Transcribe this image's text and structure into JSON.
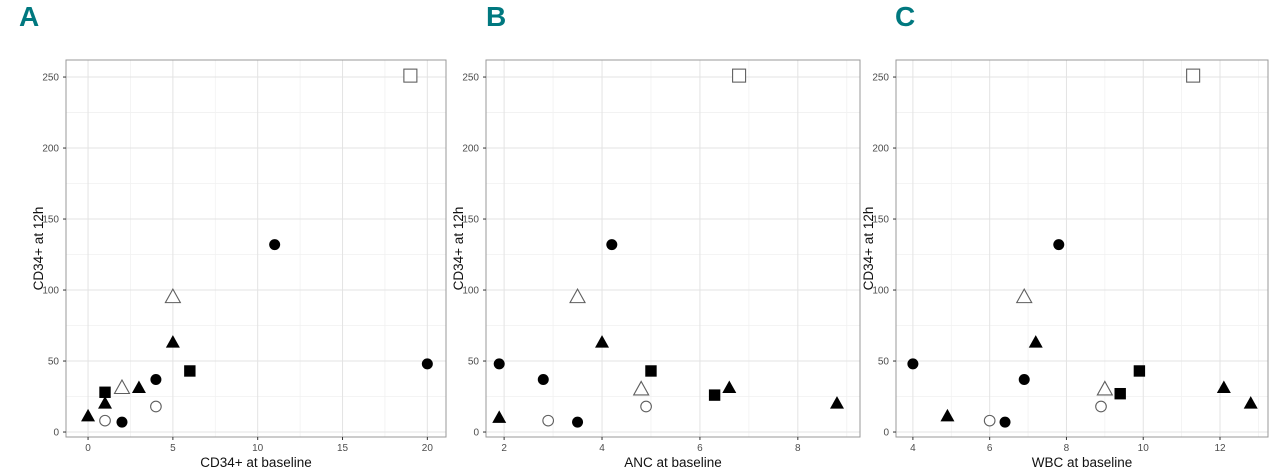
{
  "figure": {
    "label_color": "#00787f",
    "panels": [
      {
        "label": "A"
      },
      {
        "label": "B"
      },
      {
        "label": "C"
      }
    ]
  },
  "style": {
    "background": "#ffffff",
    "marker_fill": "#000000",
    "open_marker_fill": "#ffffff",
    "open_marker_stroke": "#5f5f5f",
    "grid_major": "#e3e3e3",
    "grid_minor": "#f1f1f1",
    "panel_border": "#999999",
    "tick_color": "#333333",
    "tick_label_color": "#4d4d4d",
    "axis_title_color": "#111111"
  },
  "chart_data": [
    {
      "type": "scatter",
      "panel_label": "A",
      "title": "",
      "xlabel": "CD34+ at baseline",
      "ylabel": "CD34+ at 12h",
      "xlim": [
        -1.3,
        21.1
      ],
      "ylim": [
        -3.5,
        262
      ],
      "xticks": [
        0,
        5,
        10,
        15,
        20
      ],
      "xminor": [
        2.5,
        7.5,
        12.5,
        17.5
      ],
      "yticks": [
        0,
        50,
        100,
        150,
        200,
        250
      ],
      "yminor": [
        25,
        75,
        125,
        175,
        225
      ],
      "grid": "on",
      "legend": "none",
      "series": [
        {
          "name": "filled-circle",
          "marker": "circle",
          "variant": "filled",
          "points": [
            [
              2,
              7
            ],
            [
              4,
              37
            ],
            [
              11,
              132
            ],
            [
              20,
              48
            ]
          ]
        },
        {
          "name": "open-circle",
          "marker": "circle",
          "variant": "open",
          "points": [
            [
              1,
              8
            ],
            [
              4,
              18
            ]
          ]
        },
        {
          "name": "filled-triangle",
          "marker": "triangle",
          "variant": "filled",
          "points": [
            [
              0,
              11
            ],
            [
              1,
              20
            ],
            [
              3,
              31
            ],
            [
              5,
              63
            ]
          ]
        },
        {
          "name": "open-triangle",
          "marker": "triangle",
          "variant": "open",
          "points": [
            [
              2,
              31
            ],
            [
              5,
              95
            ]
          ]
        },
        {
          "name": "filled-square",
          "marker": "square",
          "variant": "filled",
          "points": [
            [
              1,
              28
            ],
            [
              6,
              43
            ]
          ]
        },
        {
          "name": "open-square",
          "marker": "square",
          "variant": "open",
          "points": [
            [
              19,
              251
            ]
          ]
        }
      ]
    },
    {
      "type": "scatter",
      "panel_label": "B",
      "title": "",
      "xlabel": "ANC at baseline",
      "ylabel": "CD34+ at 12h",
      "xlim": [
        1.63,
        9.27
      ],
      "ylim": [
        -3.5,
        262
      ],
      "xticks": [
        2,
        4,
        6,
        8
      ],
      "xminor": [
        3,
        5,
        7,
        9
      ],
      "yticks": [
        0,
        50,
        100,
        150,
        200,
        250
      ],
      "yminor": [
        25,
        75,
        125,
        175,
        225
      ],
      "grid": "on",
      "legend": "none",
      "series": [
        {
          "name": "filled-circle",
          "marker": "circle",
          "variant": "filled",
          "points": [
            [
              3.5,
              7
            ],
            [
              2.8,
              37
            ],
            [
              4.2,
              132
            ],
            [
              1.9,
              48
            ]
          ]
        },
        {
          "name": "open-circle",
          "marker": "circle",
          "variant": "open",
          "points": [
            [
              2.9,
              8
            ],
            [
              4.9,
              18
            ]
          ]
        },
        {
          "name": "filled-triangle",
          "marker": "triangle",
          "variant": "filled",
          "points": [
            [
              1.9,
              10
            ],
            [
              8.8,
              20
            ],
            [
              6.6,
              31
            ],
            [
              4.0,
              63
            ]
          ]
        },
        {
          "name": "open-triangle",
          "marker": "triangle",
          "variant": "open",
          "points": [
            [
              4.8,
              30
            ],
            [
              3.5,
              95
            ]
          ]
        },
        {
          "name": "filled-square",
          "marker": "square",
          "variant": "filled",
          "points": [
            [
              5.0,
              43
            ],
            [
              6.3,
              26
            ]
          ]
        },
        {
          "name": "open-square",
          "marker": "square",
          "variant": "open",
          "points": [
            [
              6.8,
              251
            ]
          ]
        }
      ]
    },
    {
      "type": "scatter",
      "panel_label": "C",
      "title": "",
      "xlabel": "WBC at baseline",
      "ylabel": "CD34+ at 12h",
      "xlim": [
        3.56,
        13.25
      ],
      "ylim": [
        -3.5,
        262
      ],
      "xticks": [
        4,
        6,
        8,
        10,
        12
      ],
      "xminor": [
        5,
        7,
        9,
        11,
        13
      ],
      "yticks": [
        0,
        50,
        100,
        150,
        200,
        250
      ],
      "yminor": [
        25,
        75,
        125,
        175,
        225
      ],
      "grid": "on",
      "legend": "none",
      "series": [
        {
          "name": "filled-circle",
          "marker": "circle",
          "variant": "filled",
          "points": [
            [
              6.4,
              7
            ],
            [
              6.9,
              37
            ],
            [
              7.8,
              132
            ],
            [
              4.0,
              48
            ]
          ]
        },
        {
          "name": "open-circle",
          "marker": "circle",
          "variant": "open",
          "points": [
            [
              6.0,
              8
            ],
            [
              8.9,
              18
            ]
          ]
        },
        {
          "name": "filled-triangle",
          "marker": "triangle",
          "variant": "filled",
          "points": [
            [
              4.9,
              11
            ],
            [
              12.8,
              20
            ],
            [
              12.1,
              31
            ],
            [
              7.2,
              63
            ]
          ]
        },
        {
          "name": "open-triangle",
          "marker": "triangle",
          "variant": "open",
          "points": [
            [
              9.0,
              30
            ],
            [
              6.9,
              95
            ]
          ]
        },
        {
          "name": "filled-square",
          "marker": "square",
          "variant": "filled",
          "points": [
            [
              9.9,
              43
            ],
            [
              9.4,
              27
            ]
          ]
        },
        {
          "name": "open-square",
          "marker": "square",
          "variant": "open",
          "points": [
            [
              11.3,
              251
            ]
          ]
        }
      ]
    }
  ]
}
